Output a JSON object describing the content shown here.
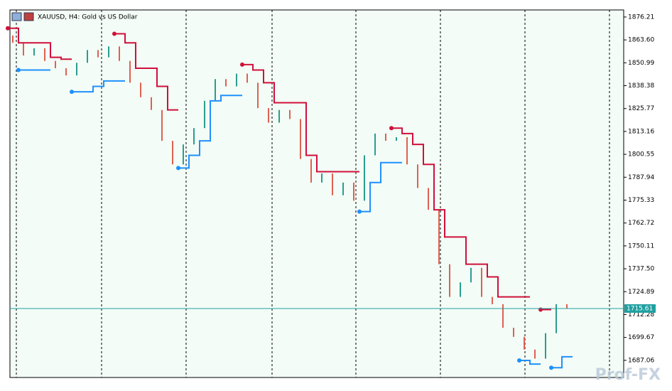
{
  "chart_data": {
    "type": "candlestick",
    "title": "XAUUSD, H4:  Gold vs US Dollar",
    "watermark": "Prof-FX",
    "open": 1866,
    "closes": [
      1862,
      1855,
      1859,
      1852,
      1848,
      1844,
      1851,
      1858,
      1854,
      1860,
      1852,
      1840,
      1832,
      1825,
      1808,
      1795,
      1806,
      1815,
      1830,
      1842,
      1838,
      1845,
      1840,
      1826,
      1818,
      1825,
      1820,
      1798,
      1785,
      1790,
      1778,
      1785,
      1775,
      1800,
      1812,
      1808,
      1810,
      1795,
      1782,
      1770,
      1740,
      1722,
      1730,
      1738,
      1722,
      1718,
      1705,
      1700,
      1693,
      1688,
      1702,
      1718,
      1715.61
    ],
    "up_color": "#2a9d8f",
    "down_color": "#e0604f",
    "stop_up": {
      "color": "#d0103a",
      "values": [
        1870,
        1862,
        1862,
        1862,
        1854,
        1853,
        null,
        null,
        null,
        null,
        1867,
        1862,
        1848,
        1848,
        1838,
        1825,
        null,
        null,
        null,
        null,
        null,
        null,
        1850,
        1847,
        1840,
        1829,
        1829,
        1829,
        1800,
        1791,
        1791,
        1791,
        1791,
        null,
        null,
        null,
        1815,
        1812,
        1806,
        1795,
        1770,
        1755,
        1755,
        1740,
        1740,
        1733,
        1722,
        1722,
        1722,
        null,
        1715,
        null,
        null
      ]
    },
    "stop_down": {
      "color": "#1e90ff",
      "values": [
        null,
        1847,
        1847,
        1847,
        null,
        null,
        1835,
        1835,
        1838,
        1841,
        1841,
        null,
        null,
        null,
        null,
        null,
        1793,
        1800,
        1808,
        1830,
        1833,
        1833,
        null,
        null,
        null,
        null,
        null,
        null,
        null,
        null,
        null,
        null,
        null,
        1769,
        1785,
        1796,
        1796,
        null,
        null,
        null,
        null,
        null,
        null,
        null,
        null,
        null,
        null,
        null,
        1687,
        1685,
        null,
        1683,
        1689
      ]
    },
    "last_price": 1715.61,
    "last_color": "#20a0a0",
    "ylim": [
      1677.6,
      1880.1
    ],
    "yticks": [
      {
        "value": 1876.21,
        "label": "1876.21"
      },
      {
        "value": 1863.6,
        "label": "1863.60"
      },
      {
        "value": 1850.99,
        "label": "1850.99"
      },
      {
        "value": 1838.38,
        "label": "1838.38"
      },
      {
        "value": 1825.77,
        "label": "1825.77"
      },
      {
        "value": 1813.16,
        "label": "1813.16"
      },
      {
        "value": 1800.55,
        "label": "1800.55"
      },
      {
        "value": 1787.94,
        "label": "1787.94"
      },
      {
        "value": 1775.33,
        "label": "1775.33"
      },
      {
        "value": 1762.72,
        "label": "1762.72"
      },
      {
        "value": 1750.11,
        "label": "1750.11"
      },
      {
        "value": 1737.5,
        "label": "1737.50"
      },
      {
        "value": 1724.89,
        "label": "1724.89"
      },
      {
        "value": 1712.28,
        "label": "1712.28"
      },
      {
        "value": 1699.67,
        "label": "1699.67"
      },
      {
        "value": 1687.06,
        "label": "1687.06"
      }
    ]
  }
}
